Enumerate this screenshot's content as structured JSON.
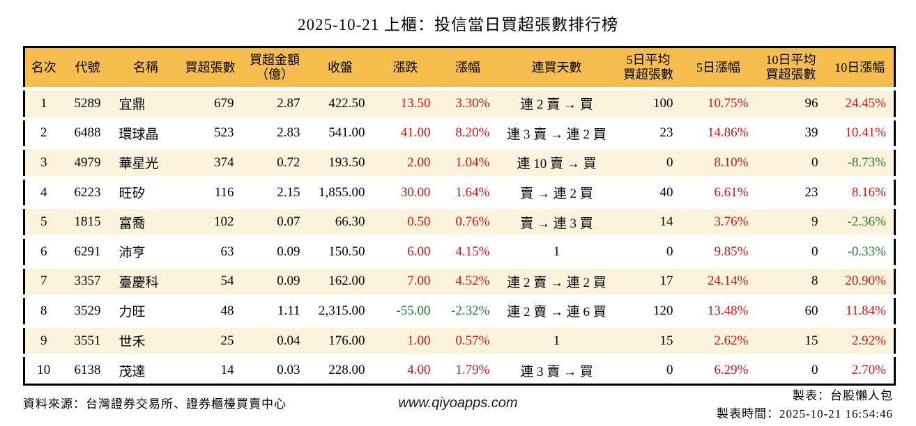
{
  "title": "2025-10-21 上櫃：投信當日買超張數排行榜",
  "colors": {
    "header_bg": "#F4BD4E",
    "row_stripe": "#FCF3DC",
    "up_red": "#DE1212",
    "down_green": "#1E7D32",
    "border": "#000000"
  },
  "table": {
    "columns": [
      {
        "key": "rank",
        "label": "名次"
      },
      {
        "key": "code",
        "label": "代號"
      },
      {
        "key": "name",
        "label": "名稱"
      },
      {
        "key": "net-buy-volume",
        "label": "買超張數"
      },
      {
        "key": "net-buy-amount",
        "label": "買超金額\n（億）"
      },
      {
        "key": "close",
        "label": "收盤"
      },
      {
        "key": "change",
        "label": "漲跌"
      },
      {
        "key": "change-pct",
        "label": "漲幅"
      },
      {
        "key": "streak-days",
        "label": "連買天數"
      },
      {
        "key": "avg5-volume",
        "label": "5日平均\n買超張數"
      },
      {
        "key": "pct5",
        "label": "5日漲幅"
      },
      {
        "key": "avg10-volume",
        "label": "10日平均\n買超張數"
      },
      {
        "key": "pct10",
        "label": "10日漲幅"
      }
    ],
    "red_green_columns": [
      6,
      7,
      10,
      12
    ],
    "rows": [
      [
        "1",
        "5289",
        "宜鼎",
        "679",
        "2.87",
        "422.50",
        "13.50",
        "3.30%",
        "連 2 賣 → 買",
        "100",
        "10.75%",
        "96",
        "24.45%"
      ],
      [
        "2",
        "6488",
        "環球晶",
        "523",
        "2.83",
        "541.00",
        "41.00",
        "8.20%",
        "連 3 賣 → 連 2 買",
        "23",
        "14.86%",
        "39",
        "10.41%"
      ],
      [
        "3",
        "4979",
        "華星光",
        "374",
        "0.72",
        "193.50",
        "2.00",
        "1.04%",
        "連 10 賣 → 買",
        "0",
        "8.10%",
        "0",
        "-8.73%"
      ],
      [
        "4",
        "6223",
        "旺矽",
        "116",
        "2.15",
        "1,855.00",
        "30.00",
        "1.64%",
        "賣 → 連 2 買",
        "40",
        "6.61%",
        "23",
        "8.16%"
      ],
      [
        "5",
        "1815",
        "富喬",
        "102",
        "0.07",
        "66.30",
        "0.50",
        "0.76%",
        "賣 → 連 3 買",
        "14",
        "3.76%",
        "9",
        "-2.36%"
      ],
      [
        "6",
        "6291",
        "沛亨",
        "63",
        "0.09",
        "150.50",
        "6.00",
        "4.15%",
        "1",
        "0",
        "9.85%",
        "0",
        "-0.33%"
      ],
      [
        "7",
        "3357",
        "臺慶科",
        "54",
        "0.09",
        "162.00",
        "7.00",
        "4.52%",
        "連 2 賣 → 連 2 買",
        "17",
        "24.14%",
        "8",
        "20.90%"
      ],
      [
        "8",
        "3529",
        "力旺",
        "48",
        "1.11",
        "2,315.00",
        "-55.00",
        "-2.32%",
        "連 2 賣 → 連 6 買",
        "120",
        "13.48%",
        "60",
        "11.84%"
      ],
      [
        "9",
        "3551",
        "世禾",
        "25",
        "0.04",
        "176.00",
        "1.00",
        "0.57%",
        "1",
        "15",
        "2.62%",
        "15",
        "2.92%"
      ],
      [
        "10",
        "6138",
        "茂達",
        "14",
        "0.03",
        "228.00",
        "4.00",
        "1.79%",
        "連 3 賣 → 買",
        "0",
        "6.29%",
        "0",
        "2.70%"
      ]
    ]
  },
  "footer": {
    "source": "資料來源：台灣證券交易所、證券櫃檯買賣中心",
    "website": "www.qiyoapps.com",
    "author": "製表：台股懶人包",
    "generated_at": "製表時間：2025-10-21 16:54:46"
  }
}
